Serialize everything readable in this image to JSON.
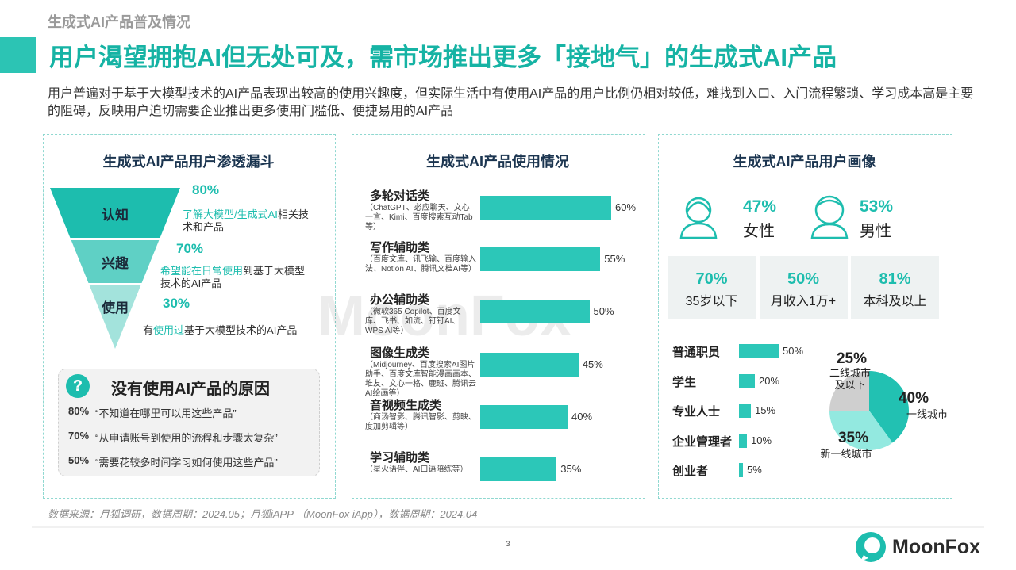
{
  "header": {
    "category": "生成式AI产品普及情况",
    "title": "用户渴望拥抱AI但无处可及，需市场推出更多「接地气」的生成式AI产品",
    "description": "用户普遍对于基于大模型技术的AI产品表现出较高的使用兴趣度，但实际生活中有使用AI产品的用户比例仍相对较低，难找到入口、入门流程繁琐、学习成本高是主要的阻碍，反映用户迫切需要企业推出更多使用门槛低、便捷易用的AI产品"
  },
  "funnel": {
    "title": "生成式AI产品用户渗透漏斗",
    "stages": [
      {
        "label": "认知",
        "percent": "80%",
        "color": "#1dbdae",
        "note": [
          {
            "text": "了解大模型/生成式AI",
            "highlight": true
          },
          {
            "text": "相关技术和产品",
            "highlight": false
          }
        ]
      },
      {
        "label": "兴趣",
        "percent": "70%",
        "color": "#5fd0c5",
        "note": [
          {
            "text": "希望能在日常使用",
            "highlight": true
          },
          {
            "text": "到基于大模型技术的AI产品",
            "highlight": false
          }
        ]
      },
      {
        "label": "使用",
        "percent": "30%",
        "color": "#a3e3dc",
        "note": [
          {
            "text": "有",
            "highlight": false
          },
          {
            "text": "使用过",
            "highlight": true
          },
          {
            "text": "基于大模型技术的AI产品",
            "highlight": false
          }
        ]
      }
    ]
  },
  "reasons": {
    "icon": "?",
    "title": "没有使用AI产品的原因",
    "items": [
      {
        "percent": "80%",
        "text": "“不知道在哪里可以用这些产品”"
      },
      {
        "percent": "70%",
        "text": "“从申请账号到使用的流程和步骤太复杂”"
      },
      {
        "percent": "50%",
        "text": "“需要花较多时间学习如何使用这些产品”"
      }
    ]
  },
  "usage": {
    "type": "bar",
    "title": "生成式AI产品使用情况",
    "color": "#2cc7b8",
    "categories": [
      "多轮对话类",
      "写作辅助类",
      "办公辅助类",
      "图像生成类",
      "音视频生成类",
      "学习辅助类"
    ],
    "notes": [
      "（ChatGPT、必应聊天、文心一言、Kimi、百度搜索互动Tab等）",
      "（百度文库、讯飞输、百度输入法、Notion AI、腾讯文档AI等）",
      "（微软365 Copilot、百度文库、飞书、如流、钉钉AI、WPS AI等）",
      "（Midjourney、百度搜索AI图片助手、百度文库智能漫画画本、堆友、文心一格、鹿班、腾讯云AI绘画等）",
      "（商汤智影、腾讯智影、剪映、度加剪辑等）",
      "（星火语伴、AI口语陪练等）"
    ],
    "values": [
      60,
      55,
      50,
      45,
      40,
      35
    ],
    "value_labels": [
      "60%",
      "55%",
      "50%",
      "45%",
      "40%",
      "35%"
    ]
  },
  "portrait": {
    "title": "生成式AI产品用户画像",
    "gender": [
      {
        "percent": "47%",
        "label": "女性"
      },
      {
        "percent": "53%",
        "label": "男性"
      }
    ],
    "stats": [
      {
        "percent": "70%",
        "label": "35岁以下"
      },
      {
        "percent": "50%",
        "label": "月收入1万+"
      },
      {
        "percent": "81%",
        "label": "本科及以上"
      }
    ]
  },
  "occupation": {
    "type": "bar",
    "color": "#2cc7b8",
    "categories": [
      "普通职员",
      "学生",
      "专业人士",
      "企业管理者",
      "创业者"
    ],
    "values": [
      50,
      20,
      15,
      10,
      5
    ],
    "value_labels": [
      "50%",
      "20%",
      "15%",
      "10%",
      "5%"
    ]
  },
  "city": {
    "type": "pie",
    "categories": [
      "一线城市",
      "新一线城市",
      "二线城市及以下"
    ],
    "values": [
      40,
      35,
      25
    ],
    "value_labels": [
      "40%",
      "35%",
      "25%"
    ],
    "colors": [
      "#22c1b2",
      "#93e9e0",
      "#cfcfcf"
    ]
  },
  "source": "数据来源：月狐调研，数据周期：2024.05；月狐iAPP （MoonFox iApp），数据周期：2024.04",
  "page_number": "3",
  "watermark": "MoonFox",
  "logo": "MoonFox"
}
